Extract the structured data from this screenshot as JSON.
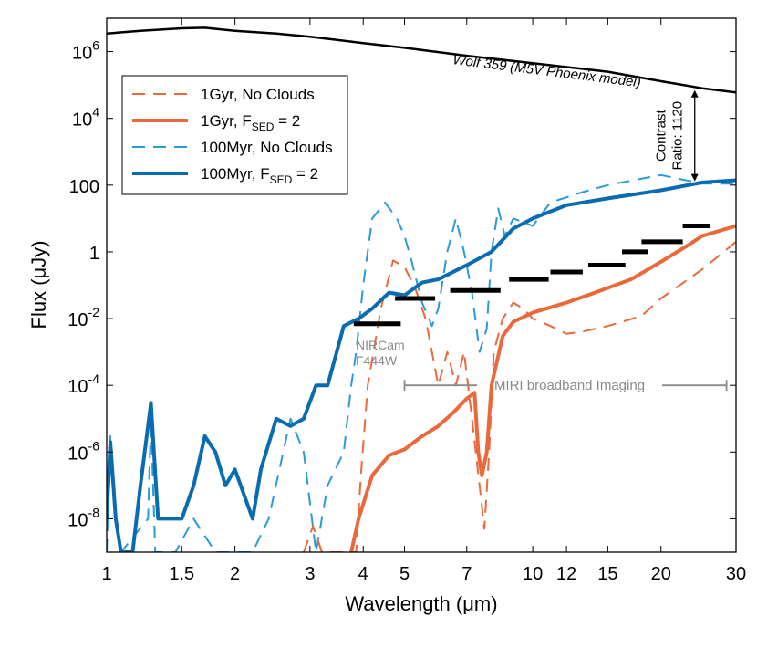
{
  "chart_data": {
    "type": "line",
    "xlabel": "Wavelength (μm)",
    "ylabel": "Flux (μJy)",
    "x_scale": "log",
    "y_scale": "log",
    "xlim": [
      1,
      30
    ],
    "ylim": [
      1e-09,
      10000000.0
    ],
    "grid": false,
    "legend_position": "top-left",
    "x_ticks": [
      {
        "v": 1,
        "label": "1"
      },
      {
        "v": 1.5,
        "label": "1.5"
      },
      {
        "v": 2,
        "label": "2"
      },
      {
        "v": 3,
        "label": "3"
      },
      {
        "v": 4,
        "label": "4"
      },
      {
        "v": 5,
        "label": "5"
      },
      {
        "v": 7,
        "label": "7"
      },
      {
        "v": 10,
        "label": "10"
      },
      {
        "v": 12,
        "label": "12"
      },
      {
        "v": 15,
        "label": "15"
      },
      {
        "v": 20,
        "label": "20"
      },
      {
        "v": 30,
        "label": "30"
      }
    ],
    "y_ticks": [
      {
        "v": 1e-08,
        "base": "10",
        "exp": "-8"
      },
      {
        "v": 1e-06,
        "base": "10",
        "exp": "-6"
      },
      {
        "v": 0.0001,
        "base": "10",
        "exp": "-4"
      },
      {
        "v": 0.01,
        "base": "10",
        "exp": "-2"
      },
      {
        "v": 1,
        "base": "1",
        "exp": ""
      },
      {
        "v": 100,
        "base": "100",
        "exp": ""
      },
      {
        "v": 10000.0,
        "base": "10",
        "exp": "4"
      },
      {
        "v": 1000000.0,
        "base": "10",
        "exp": "6"
      }
    ],
    "series": [
      {
        "name": "Wolf 359 (M5V Phoenix model)",
        "color": "#000000",
        "dash": "solid",
        "width": 2.5,
        "in_legend": false,
        "points": [
          [
            1,
            3500000.0
          ],
          [
            1.2,
            4200000.0
          ],
          [
            1.5,
            5000000.0
          ],
          [
            1.7,
            5200000.0
          ],
          [
            2,
            4200000.0
          ],
          [
            2.5,
            3500000.0
          ],
          [
            3,
            2800000.0
          ],
          [
            4,
            1800000.0
          ],
          [
            5,
            1300000.0
          ],
          [
            7,
            750000.0
          ],
          [
            10,
            450000.0
          ],
          [
            15,
            250000.0
          ],
          [
            20,
            130000.0
          ],
          [
            25,
            80000.0
          ],
          [
            30,
            60000.0
          ]
        ]
      },
      {
        "name": "1Gyr, No Clouds",
        "color": "#e9693a",
        "dash": "dashed",
        "width": 2,
        "in_legend": true,
        "legend_label": "1Gyr, No Clouds",
        "points": [
          [
            2.9,
            1e-09
          ],
          [
            3.05,
            6e-09
          ],
          [
            3.2,
            1e-09
          ],
          [
            3.85,
            1e-09
          ],
          [
            3.95,
            2e-07
          ],
          [
            4.1,
            0.0001
          ],
          [
            4.4,
            0.02
          ],
          [
            4.7,
            0.55
          ],
          [
            5.0,
            0.35
          ],
          [
            5.3,
            0.08
          ],
          [
            5.6,
            0.01
          ],
          [
            5.8,
            0.001
          ],
          [
            6.0,
            0.0001
          ],
          [
            6.3,
            0.001
          ],
          [
            6.6,
            0.0001
          ],
          [
            6.9,
            0.001
          ],
          [
            7.2,
            1e-05
          ],
          [
            7.5,
            1e-07
          ],
          [
            7.7,
            5e-09
          ],
          [
            7.9,
            1e-06
          ],
          [
            8.1,
            0.001
          ],
          [
            8.5,
            0.01
          ],
          [
            9,
            0.03
          ],
          [
            9.5,
            0.02
          ],
          [
            10,
            0.01
          ],
          [
            11,
            0.006
          ],
          [
            12,
            0.0035
          ],
          [
            13,
            0.004
          ],
          [
            15,
            0.006
          ],
          [
            18,
            0.012
          ],
          [
            20,
            0.04
          ],
          [
            25,
            0.3
          ],
          [
            30,
            2.0
          ]
        ]
      },
      {
        "name": "1Gyr, F_SED = 2",
        "color": "#e9693a",
        "dash": "solid",
        "width": 4,
        "in_legend": true,
        "legend_label": "1Gyr, F",
        "legend_sub": "SED",
        "legend_tail": " = 2",
        "points": [
          [
            3.75,
            1e-09
          ],
          [
            3.9,
            1e-08
          ],
          [
            4.2,
            2e-07
          ],
          [
            4.6,
            8e-07
          ],
          [
            5.0,
            1.2e-06
          ],
          [
            5.5,
            3e-06
          ],
          [
            6,
            6e-06
          ],
          [
            6.5,
            1.5e-05
          ],
          [
            7,
            4e-05
          ],
          [
            7.3,
            6e-05
          ],
          [
            7.45,
            1e-06
          ],
          [
            7.6,
            2e-07
          ],
          [
            7.8,
            1e-06
          ],
          [
            8.0,
            0.0001
          ],
          [
            8.5,
            0.003
          ],
          [
            9,
            0.008
          ],
          [
            10,
            0.015
          ],
          [
            12,
            0.03
          ],
          [
            14,
            0.06
          ],
          [
            17,
            0.15
          ],
          [
            20,
            0.5
          ],
          [
            23,
            1.5
          ],
          [
            25,
            3
          ],
          [
            30,
            6
          ]
        ]
      },
      {
        "name": "100Myr, No Clouds",
        "color": "#2a9ad9",
        "dash": "dashed",
        "width": 2,
        "in_legend": true,
        "legend_label": "100Myr, No Clouds",
        "points": [
          [
            1,
            1e-09
          ],
          [
            1.02,
            3e-06
          ],
          [
            1.05,
            1e-08
          ],
          [
            1.08,
            1e-09
          ],
          [
            1.25,
            1e-08
          ],
          [
            1.27,
            1e-05
          ],
          [
            1.3,
            1e-09
          ],
          [
            1.45,
            1e-09
          ],
          [
            1.6,
            1e-08
          ],
          [
            1.8,
            1e-09
          ],
          [
            2.2,
            1e-09
          ],
          [
            2.4,
            1e-08
          ],
          [
            2.7,
            1e-05
          ],
          [
            2.9,
            1e-06
          ],
          [
            3.1,
            1e-09
          ],
          [
            3.3,
            1e-07
          ],
          [
            3.6,
            1e-06
          ],
          [
            3.75,
            0.0001
          ],
          [
            3.85,
            0.001
          ],
          [
            4.0,
            0.1
          ],
          [
            4.2,
            10
          ],
          [
            4.5,
            30
          ],
          [
            4.8,
            10
          ],
          [
            5.0,
            3
          ],
          [
            5.2,
            0.5
          ],
          [
            5.5,
            0.03
          ],
          [
            5.8,
            0.006
          ],
          [
            6.0,
            0.02
          ],
          [
            6.3,
            1
          ],
          [
            6.6,
            10
          ],
          [
            6.9,
            1
          ],
          [
            7.2,
            0.06
          ],
          [
            7.5,
            0.001
          ],
          [
            7.8,
            0.005
          ],
          [
            8.0,
            1
          ],
          [
            8.3,
            20
          ],
          [
            8.6,
            3
          ],
          [
            9,
            10
          ],
          [
            10,
            6
          ],
          [
            11,
            30
          ],
          [
            13,
            60
          ],
          [
            15,
            100
          ],
          [
            20,
            200
          ],
          [
            25,
            110
          ],
          [
            30,
            110
          ]
        ]
      },
      {
        "name": "100Myr, F_SED = 2",
        "color": "#0a6cb0",
        "dash": "solid",
        "width": 4,
        "in_legend": true,
        "legend_label": "100Myr, F",
        "legend_sub": "SED",
        "legend_tail": " = 2",
        "points": [
          [
            1,
            1e-08
          ],
          [
            1.02,
            2e-06
          ],
          [
            1.05,
            1e-08
          ],
          [
            1.08,
            1e-09
          ],
          [
            1.15,
            1e-09
          ],
          [
            1.2,
            1e-07
          ],
          [
            1.27,
            3e-05
          ],
          [
            1.32,
            1e-08
          ],
          [
            1.4,
            1e-08
          ],
          [
            1.5,
            1e-08
          ],
          [
            1.6,
            1e-07
          ],
          [
            1.7,
            3e-06
          ],
          [
            1.8,
            1e-06
          ],
          [
            1.9,
            1e-07
          ],
          [
            2.0,
            3e-07
          ],
          [
            2.2,
            1e-08
          ],
          [
            2.3,
            3e-07
          ],
          [
            2.5,
            1e-05
          ],
          [
            2.7,
            6e-06
          ],
          [
            2.9,
            1e-05
          ],
          [
            3.1,
            0.0001
          ],
          [
            3.3,
            0.0001
          ],
          [
            3.6,
            0.006
          ],
          [
            3.9,
            0.01
          ],
          [
            4.2,
            0.02
          ],
          [
            4.6,
            0.06
          ],
          [
            5.0,
            0.05
          ],
          [
            5.5,
            0.12
          ],
          [
            6,
            0.15
          ],
          [
            7,
            0.4
          ],
          [
            8,
            1
          ],
          [
            9,
            5
          ],
          [
            10,
            10
          ],
          [
            12,
            25
          ],
          [
            15,
            40
          ],
          [
            20,
            70
          ],
          [
            25,
            120
          ],
          [
            30,
            140
          ]
        ]
      }
    ],
    "bands": {
      "color": "#000000",
      "segments": [
        [
          3.8,
          4.9,
          0.007
        ],
        [
          4.75,
          5.9,
          0.04
        ],
        [
          6.4,
          8.4,
          0.07
        ],
        [
          8.8,
          10.9,
          0.15
        ],
        [
          11.0,
          13.1,
          0.25
        ],
        [
          13.5,
          16.5,
          0.4
        ],
        [
          16.2,
          18.6,
          1.0
        ],
        [
          18.0,
          22.5,
          2.0
        ],
        [
          22.5,
          26.0,
          6.0
        ]
      ]
    },
    "annotations": {
      "wolf_label": "Wolf 359 (M5V Phoenix model)",
      "contrast_line1": "Contrast",
      "contrast_line2": "Ratio: 1120",
      "contrast_arrow": {
        "x": 24.0,
        "y_top": 70000.0,
        "y_bottom": 130
      },
      "nircam_line1": "NIRCam",
      "nircam_line2": "F444W",
      "miri_label": "MIRI broadband Imaging",
      "miri_range": {
        "x1": 5.0,
        "x2": 28.5,
        "y": 0.0001
      },
      "grey_color": "#8a8a8a"
    }
  }
}
